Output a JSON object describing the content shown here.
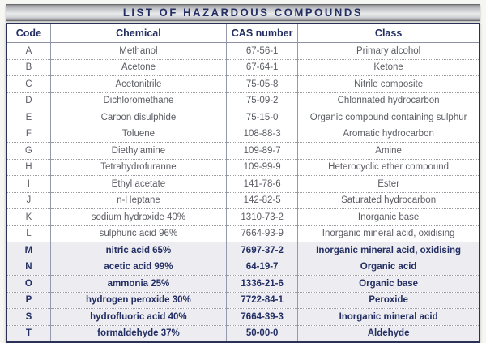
{
  "title": "LIST OF HAZARDOUS COMPOUNDS",
  "table": {
    "columns": [
      "Code",
      "Chemical",
      "CAS number",
      "Class"
    ],
    "rows": [
      {
        "code": "A",
        "chemical": "Methanol",
        "cas": "67-56-1",
        "class": "Primary alcohol",
        "bold": false
      },
      {
        "code": "B",
        "chemical": "Acetone",
        "cas": "67-64-1",
        "class": "Ketone",
        "bold": false
      },
      {
        "code": "C",
        "chemical": "Acetonitrile",
        "cas": "75-05-8",
        "class": "Nitrile composite",
        "bold": false
      },
      {
        "code": "D",
        "chemical": "Dichloromethane",
        "cas": "75-09-2",
        "class": "Chlorinated hydrocarbon",
        "bold": false
      },
      {
        "code": "E",
        "chemical": "Carbon disulphide",
        "cas": "75-15-0",
        "class": "Organic compound containing sulphur",
        "bold": false
      },
      {
        "code": "F",
        "chemical": "Toluene",
        "cas": "108-88-3",
        "class": "Aromatic hydrocarbon",
        "bold": false
      },
      {
        "code": "G",
        "chemical": "Diethylamine",
        "cas": "109-89-7",
        "class": "Amine",
        "bold": false
      },
      {
        "code": "H",
        "chemical": "Tetrahydrofuranne",
        "cas": "109-99-9",
        "class": "Heterocyclic ether compound",
        "bold": false
      },
      {
        "code": "I",
        "chemical": "Ethyl acetate",
        "cas": "141-78-6",
        "class": "Ester",
        "bold": false
      },
      {
        "code": "J",
        "chemical": "n-Heptane",
        "cas": "142-82-5",
        "class": "Saturated hydrocarbon",
        "bold": false
      },
      {
        "code": "K",
        "chemical": "sodium hydroxide 40%",
        "cas": "1310-73-2",
        "class": "Inorganic base",
        "bold": false
      },
      {
        "code": "L",
        "chemical": "sulphuric acid 96%",
        "cas": "7664-93-9",
        "class": "Inorganic mineral acid, oxidising",
        "bold": false
      },
      {
        "code": "M",
        "chemical": "nitric acid 65%",
        "cas": "7697-37-2",
        "class": "Inorganic mineral acid, oxidising",
        "bold": true
      },
      {
        "code": "N",
        "chemical": "acetic acid 99%",
        "cas": "64-19-7",
        "class": "Organic acid",
        "bold": true
      },
      {
        "code": "O",
        "chemical": "ammonia 25%",
        "cas": "1336-21-6",
        "class": "Organic base",
        "bold": true
      },
      {
        "code": "P",
        "chemical": "hydrogen peroxide 30%",
        "cas": "7722-84-1",
        "class": "Peroxide",
        "bold": true
      },
      {
        "code": "S",
        "chemical": "hydrofluoric acid 40%",
        "cas": "7664-39-3",
        "class": "Inorganic mineral acid",
        "bold": true
      },
      {
        "code": "T",
        "chemical": "formaldehyde 37%",
        "cas": "50-00-0",
        "class": "Aldehyde",
        "bold": true
      }
    ]
  },
  "colors": {
    "navy_text": "#232e63",
    "gray_text": "#5b5d64",
    "outer_border": "#2b3156",
    "bold_row_bg": "#ededf1",
    "title_bar_silver": "#d3d4d7",
    "page_bg": "#f6f6f3"
  }
}
